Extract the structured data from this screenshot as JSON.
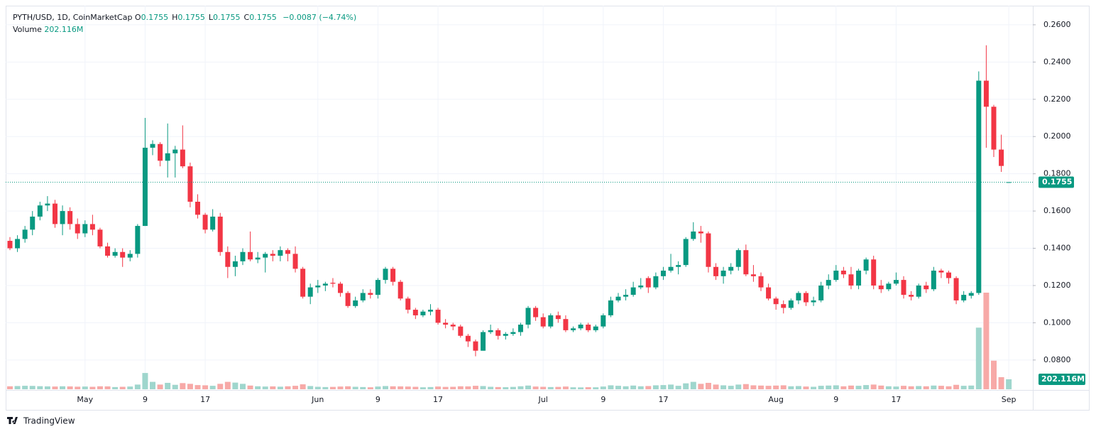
{
  "header": {
    "symbol": "PYTH/USD, 1D, CoinMarketCap",
    "ohlc": [
      [
        "O",
        "0.1755"
      ],
      [
        "H",
        "0.1755"
      ],
      [
        "L",
        "0.1755"
      ],
      [
        "C",
        "0.1755"
      ]
    ],
    "change": "−0.0087 (−4.74%)",
    "volume_title": "Volume",
    "volume_value": "202.116M"
  },
  "logo": "TradingView",
  "chart_data": {
    "type": "candlestick",
    "up_color": "#089981",
    "down_color": "#f23645",
    "volume_up_color": "#9fd6cd",
    "volume_down_color": "#f7a9a7",
    "grid": true,
    "ylim": [
      0.0643,
      0.2695
    ],
    "yticks": [
      {
        "value": 0.08,
        "label": "0.0800"
      },
      {
        "value": 0.1,
        "label": "0.1000"
      },
      {
        "value": 0.12,
        "label": "0.1200"
      },
      {
        "value": 0.14,
        "label": "0.1400"
      },
      {
        "value": 0.16,
        "label": "0.1600"
      },
      {
        "value": 0.18,
        "label": "0.1800"
      },
      {
        "value": 0.2,
        "label": "0.2000"
      },
      {
        "value": 0.22,
        "label": "0.2200"
      },
      {
        "value": 0.24,
        "label": "0.2400"
      },
      {
        "value": 0.26,
        "label": "0.2600"
      }
    ],
    "xticks": [
      {
        "value": "May 1",
        "label": "May"
      },
      {
        "value": "May 9",
        "label": "9"
      },
      {
        "value": "May 17",
        "label": "17"
      },
      {
        "value": "Jun 1",
        "label": "Jun"
      },
      {
        "value": "Jun 9",
        "label": "9"
      },
      {
        "value": "Jun 17",
        "label": "17"
      },
      {
        "value": "Jul 1",
        "label": "Jul"
      },
      {
        "value": "Jul 9",
        "label": "9"
      },
      {
        "value": "Jul 17",
        "label": "17"
      },
      {
        "value": "Aug 1",
        "label": "Aug"
      },
      {
        "value": "Aug 9",
        "label": "9"
      },
      {
        "value": "Aug 17",
        "label": "17"
      },
      {
        "value": "Sep 1",
        "label": "Sep"
      }
    ],
    "x": [
      "Apr 21",
      "Apr 22",
      "Apr 23",
      "Apr 24",
      "Apr 25",
      "Apr 26",
      "Apr 27",
      "Apr 28",
      "Apr 29",
      "Apr 30",
      "May 1",
      "May 2",
      "May 3",
      "May 4",
      "May 5",
      "May 6",
      "May 7",
      "May 8",
      "May 9",
      "May 10",
      "May 11",
      "May 12",
      "May 13",
      "May 14",
      "May 15",
      "May 16",
      "May 17",
      "May 18",
      "May 19",
      "May 20",
      "May 21",
      "May 22",
      "May 23",
      "May 24",
      "May 25",
      "May 26",
      "May 27",
      "May 28",
      "May 29",
      "May 30",
      "May 31",
      "Jun 1",
      "Jun 2",
      "Jun 3",
      "Jun 4",
      "Jun 5",
      "Jun 6",
      "Jun 7",
      "Jun 8",
      "Jun 9",
      "Jun 10",
      "Jun 11",
      "Jun 12",
      "Jun 13",
      "Jun 14",
      "Jun 15",
      "Jun 16",
      "Jun 17",
      "Jun 18",
      "Jun 19",
      "Jun 20",
      "Jun 21",
      "Jun 22",
      "Jun 23",
      "Jun 24",
      "Jun 25",
      "Jun 26",
      "Jun 27",
      "Jun 28",
      "Jun 29",
      "Jun 30",
      "Jul 1",
      "Jul 2",
      "Jul 3",
      "Jul 4",
      "Jul 5",
      "Jul 6",
      "Jul 7",
      "Jul 8",
      "Jul 9",
      "Jul 10",
      "Jul 11",
      "Jul 12",
      "Jul 13",
      "Jul 14",
      "Jul 15",
      "Jul 16",
      "Jul 17",
      "Jul 18",
      "Jul 19",
      "Jul 20",
      "Jul 21",
      "Jul 22",
      "Jul 23",
      "Jul 24",
      "Jul 25",
      "Jul 26",
      "Jul 27",
      "Jul 28",
      "Jul 29",
      "Jul 30",
      "Jul 31",
      "Aug 1",
      "Aug 2",
      "Aug 3",
      "Aug 4",
      "Aug 5",
      "Aug 6",
      "Aug 7",
      "Aug 8",
      "Aug 9",
      "Aug 10",
      "Aug 11",
      "Aug 12",
      "Aug 13",
      "Aug 14",
      "Aug 15",
      "Aug 16",
      "Aug 17",
      "Aug 18",
      "Aug 19",
      "Aug 20",
      "Aug 21",
      "Aug 22",
      "Aug 23",
      "Aug 24",
      "Aug 25",
      "Aug 26",
      "Aug 27",
      "Aug 28",
      "Aug 29",
      "Aug 30",
      "Aug 31",
      "Sep 1"
    ],
    "candles": [
      [
        0.144,
        0.146,
        0.139,
        0.14
      ],
      [
        0.14,
        0.147,
        0.138,
        0.145
      ],
      [
        0.145,
        0.152,
        0.143,
        0.15
      ],
      [
        0.15,
        0.16,
        0.147,
        0.157
      ],
      [
        0.157,
        0.165,
        0.155,
        0.163
      ],
      [
        0.163,
        0.168,
        0.16,
        0.164
      ],
      [
        0.164,
        0.166,
        0.151,
        0.153
      ],
      [
        0.153,
        0.163,
        0.147,
        0.16
      ],
      [
        0.16,
        0.162,
        0.15,
        0.153
      ],
      [
        0.153,
        0.156,
        0.145,
        0.148
      ],
      [
        0.148,
        0.155,
        0.146,
        0.153
      ],
      [
        0.153,
        0.158,
        0.147,
        0.15
      ],
      [
        0.15,
        0.151,
        0.14,
        0.141
      ],
      [
        0.141,
        0.143,
        0.135,
        0.136
      ],
      [
        0.136,
        0.14,
        0.135,
        0.138
      ],
      [
        0.138,
        0.14,
        0.13,
        0.135
      ],
      [
        0.135,
        0.139,
        0.133,
        0.137
      ],
      [
        0.137,
        0.153,
        0.135,
        0.152
      ],
      [
        0.152,
        0.21,
        0.152,
        0.194
      ],
      [
        0.194,
        0.198,
        0.19,
        0.196
      ],
      [
        0.196,
        0.197,
        0.184,
        0.187
      ],
      [
        0.187,
        0.207,
        0.178,
        0.191
      ],
      [
        0.191,
        0.195,
        0.178,
        0.193
      ],
      [
        0.193,
        0.206,
        0.183,
        0.184
      ],
      [
        0.184,
        0.186,
        0.162,
        0.165
      ],
      [
        0.165,
        0.169,
        0.156,
        0.158
      ],
      [
        0.158,
        0.159,
        0.148,
        0.15
      ],
      [
        0.15,
        0.161,
        0.149,
        0.157
      ],
      [
        0.157,
        0.159,
        0.136,
        0.138
      ],
      [
        0.138,
        0.141,
        0.124,
        0.13
      ],
      [
        0.13,
        0.136,
        0.125,
        0.133
      ],
      [
        0.133,
        0.14,
        0.131,
        0.138
      ],
      [
        0.138,
        0.149,
        0.133,
        0.134
      ],
      [
        0.134,
        0.138,
        0.132,
        0.135
      ],
      [
        0.135,
        0.138,
        0.127,
        0.137
      ],
      [
        0.137,
        0.139,
        0.133,
        0.136
      ],
      [
        0.136,
        0.141,
        0.133,
        0.139
      ],
      [
        0.139,
        0.14,
        0.133,
        0.137
      ],
      [
        0.137,
        0.141,
        0.127,
        0.129
      ],
      [
        0.129,
        0.13,
        0.113,
        0.114
      ],
      [
        0.114,
        0.121,
        0.11,
        0.119
      ],
      [
        0.119,
        0.123,
        0.116,
        0.12
      ],
      [
        0.12,
        0.122,
        0.117,
        0.121
      ],
      [
        0.1215,
        0.124,
        0.119,
        0.121
      ],
      [
        0.121,
        0.122,
        0.114,
        0.116
      ],
      [
        0.116,
        0.117,
        0.108,
        0.109
      ],
      [
        0.109,
        0.114,
        0.108,
        0.112
      ],
      [
        0.112,
        0.118,
        0.111,
        0.116
      ],
      [
        0.116,
        0.118,
        0.113,
        0.115
      ],
      [
        0.115,
        0.124,
        0.113,
        0.123
      ],
      [
        0.123,
        0.13,
        0.121,
        0.129
      ],
      [
        0.129,
        0.13,
        0.12,
        0.122
      ],
      [
        0.122,
        0.123,
        0.112,
        0.113
      ],
      [
        0.113,
        0.114,
        0.105,
        0.107
      ],
      [
        0.107,
        0.108,
        0.102,
        0.104
      ],
      [
        0.104,
        0.107,
        0.103,
        0.106
      ],
      [
        0.106,
        0.11,
        0.104,
        0.107
      ],
      [
        0.107,
        0.108,
        0.099,
        0.1
      ],
      [
        0.1,
        0.102,
        0.097,
        0.099
      ],
      [
        0.099,
        0.1,
        0.096,
        0.098
      ],
      [
        0.098,
        0.099,
        0.092,
        0.093
      ],
      [
        0.093,
        0.094,
        0.087,
        0.09
      ],
      [
        0.09,
        0.091,
        0.082,
        0.085
      ],
      [
        0.085,
        0.096,
        0.085,
        0.095
      ],
      [
        0.095,
        0.099,
        0.094,
        0.096
      ],
      [
        0.096,
        0.097,
        0.091,
        0.093
      ],
      [
        0.093,
        0.095,
        0.091,
        0.094
      ],
      [
        0.094,
        0.097,
        0.093,
        0.095
      ],
      [
        0.095,
        0.1,
        0.093,
        0.099
      ],
      [
        0.099,
        0.109,
        0.097,
        0.108
      ],
      [
        0.108,
        0.109,
        0.101,
        0.103
      ],
      [
        0.103,
        0.105,
        0.097,
        0.098
      ],
      [
        0.098,
        0.105,
        0.097,
        0.104
      ],
      [
        0.104,
        0.106,
        0.1,
        0.102
      ],
      [
        0.102,
        0.104,
        0.095,
        0.096
      ],
      [
        0.096,
        0.098,
        0.095,
        0.097
      ],
      [
        0.097,
        0.1,
        0.096,
        0.099
      ],
      [
        0.099,
        0.1,
        0.095,
        0.096
      ],
      [
        0.096,
        0.099,
        0.095,
        0.098
      ],
      [
        0.098,
        0.105,
        0.097,
        0.104
      ],
      [
        0.104,
        0.114,
        0.103,
        0.112
      ],
      [
        0.112,
        0.116,
        0.111,
        0.114
      ],
      [
        0.114,
        0.118,
        0.112,
        0.115
      ],
      [
        0.115,
        0.122,
        0.114,
        0.119
      ],
      [
        0.119,
        0.124,
        0.118,
        0.12
      ],
      [
        0.124,
        0.125,
        0.116,
        0.119
      ],
      [
        0.119,
        0.127,
        0.118,
        0.125
      ],
      [
        0.125,
        0.13,
        0.123,
        0.128
      ],
      [
        0.128,
        0.137,
        0.127,
        0.13
      ],
      [
        0.13,
        0.133,
        0.126,
        0.131
      ],
      [
        0.131,
        0.146,
        0.13,
        0.145
      ],
      [
        0.145,
        0.154,
        0.144,
        0.149
      ],
      [
        0.149,
        0.152,
        0.143,
        0.148
      ],
      [
        0.148,
        0.149,
        0.127,
        0.13
      ],
      [
        0.13,
        0.132,
        0.123,
        0.125
      ],
      [
        0.125,
        0.13,
        0.121,
        0.128
      ],
      [
        0.128,
        0.132,
        0.126,
        0.13
      ],
      [
        0.13,
        0.14,
        0.128,
        0.139
      ],
      [
        0.139,
        0.142,
        0.125,
        0.126
      ],
      [
        0.126,
        0.131,
        0.122,
        0.125
      ],
      [
        0.125,
        0.127,
        0.117,
        0.119
      ],
      [
        0.119,
        0.121,
        0.112,
        0.113
      ],
      [
        0.113,
        0.114,
        0.107,
        0.11
      ],
      [
        0.11,
        0.112,
        0.105,
        0.108
      ],
      [
        0.108,
        0.113,
        0.107,
        0.112
      ],
      [
        0.112,
        0.117,
        0.11,
        0.116
      ],
      [
        0.116,
        0.117,
        0.109,
        0.111
      ],
      [
        0.111,
        0.114,
        0.109,
        0.112
      ],
      [
        0.112,
        0.122,
        0.111,
        0.12
      ],
      [
        0.12,
        0.126,
        0.118,
        0.123
      ],
      [
        0.123,
        0.131,
        0.122,
        0.128
      ],
      [
        0.128,
        0.13,
        0.124,
        0.126
      ],
      [
        0.126,
        0.13,
        0.118,
        0.12
      ],
      [
        0.12,
        0.129,
        0.118,
        0.128
      ],
      [
        0.128,
        0.135,
        0.126,
        0.134
      ],
      [
        0.134,
        0.136,
        0.118,
        0.12
      ],
      [
        0.12,
        0.123,
        0.116,
        0.118
      ],
      [
        0.118,
        0.122,
        0.117,
        0.121
      ],
      [
        0.121,
        0.127,
        0.12,
        0.123
      ],
      [
        0.123,
        0.125,
        0.113,
        0.115
      ],
      [
        0.115,
        0.117,
        0.112,
        0.114
      ],
      [
        0.114,
        0.121,
        0.113,
        0.12
      ],
      [
        0.12,
        0.122,
        0.116,
        0.118
      ],
      [
        0.118,
        0.13,
        0.117,
        0.128
      ],
      [
        0.128,
        0.129,
        0.124,
        0.127
      ],
      [
        0.127,
        0.128,
        0.121,
        0.124
      ],
      [
        0.124,
        0.125,
        0.11,
        0.112
      ],
      [
        0.112,
        0.117,
        0.111,
        0.115
      ],
      [
        0.1145,
        0.117,
        0.113,
        0.116
      ],
      [
        0.116,
        0.235,
        0.115,
        0.23
      ],
      [
        0.23,
        0.249,
        0.194,
        0.216
      ],
      [
        0.216,
        0.217,
        0.189,
        0.193
      ],
      [
        0.193,
        0.201,
        0.181,
        0.1842
      ],
      [
        0.1755,
        0.1755,
        0.1755,
        0.1755
      ]
    ],
    "volume": [
      60,
      65,
      70,
      68,
      62,
      58,
      55,
      60,
      57,
      52,
      55,
      50,
      60,
      58,
      45,
      50,
      55,
      95,
      330,
      150,
      95,
      130,
      90,
      125,
      110,
      85,
      80,
      70,
      110,
      150,
      135,
      110,
      75,
      60,
      55,
      58,
      52,
      60,
      70,
      100,
      65,
      50,
      45,
      48,
      55,
      60,
      50,
      45,
      40,
      55,
      65,
      60,
      58,
      55,
      50,
      40,
      45,
      55,
      48,
      50,
      60,
      58,
      70,
      65,
      50,
      45,
      42,
      48,
      60,
      75,
      55,
      50,
      45,
      48,
      55,
      40,
      38,
      42,
      40,
      55,
      80,
      70,
      60,
      75,
      60,
      65,
      80,
      85,
      95,
      70,
      120,
      150,
      110,
      130,
      95,
      80,
      70,
      95,
      105,
      80,
      75,
      70,
      75,
      80,
      60,
      65,
      55,
      50,
      70,
      75,
      80,
      60,
      75,
      70,
      85,
      95,
      75,
      60,
      55,
      70,
      60,
      65,
      60,
      75,
      70,
      60,
      90,
      70,
      75,
      1250,
      1960,
      580,
      245,
      202.116
    ]
  }
}
